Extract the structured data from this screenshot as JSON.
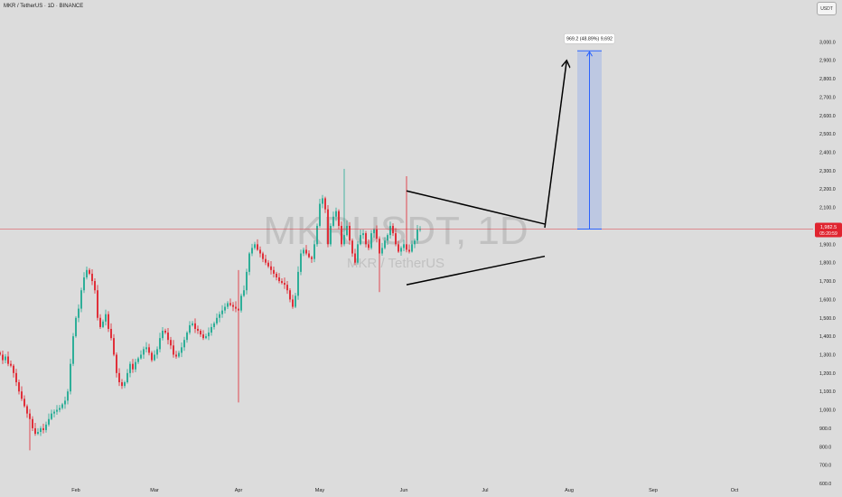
{
  "header": {
    "symbol_text": "MKR / TetherUS · 1D · BINANCE",
    "unit": "USDT"
  },
  "watermark": {
    "big": "MKRUSDT, 1D",
    "small": "MKR / TetherUS"
  },
  "price_badge": {
    "price": "1,982.5",
    "countdown": "05:20:59",
    "color": "#e0242f"
  },
  "measure": {
    "label": "969.2 (48.89%) 9,692",
    "from_price": 1982.5,
    "to_price": 2951.7
  },
  "chart_data": {
    "type": "candlestick",
    "symbol": "MKRUSDT",
    "interval": "1D",
    "exchange": "BINANCE",
    "ylim": [
      600,
      3100
    ],
    "y_ticks": [
      600,
      700,
      800,
      900,
      1000,
      1100,
      1200,
      1300,
      1400,
      1500,
      1600,
      1700,
      1800,
      1900,
      2000,
      2100,
      2200,
      2300,
      2400,
      2500,
      2600,
      2700,
      2800,
      2900,
      3000
    ],
    "y_tick_labels": [
      "600.0",
      "700.0",
      "800.0",
      "900.0",
      "1,000.0",
      "1,100.0",
      "1,200.0",
      "1,300.0",
      "1,400.0",
      "1,500.0",
      "1,600.0",
      "1,700.0",
      "1,800.0",
      "1,900.0",
      "2,000.0",
      "2,100.0",
      "2,200.0",
      "2,300.0",
      "2,400.0",
      "2,500.0",
      "2,600.0",
      "2,700.0",
      "2,800.0",
      "2,900.0",
      "3,000.0"
    ],
    "x_labels": [
      {
        "label": "Feb",
        "date": "2024-02-01"
      },
      {
        "label": "Mar",
        "date": "2024-03-01"
      },
      {
        "label": "Apr",
        "date": "2024-04-01"
      },
      {
        "label": "May",
        "date": "2024-05-01"
      },
      {
        "label": "Jun",
        "date": "2024-06-01"
      },
      {
        "label": "Jul",
        "date": "2024-07-01"
      },
      {
        "label": "Aug",
        "date": "2024-08-01"
      },
      {
        "label": "Sep",
        "date": "2024-09-01"
      },
      {
        "label": "Oct",
        "date": "2024-10-01"
      }
    ],
    "x_range": [
      "2024-01-04",
      "2024-10-30"
    ],
    "last_price": 1982.5,
    "colors": {
      "up": "#22ab94",
      "down": "#e0242f",
      "background": "#dcdcdc"
    },
    "candles_start_date": "2024-01-04",
    "closes": [
      1300,
      1270,
      1290,
      1250,
      1240,
      1200,
      1150,
      1100,
      1060,
      1020,
      980,
      950,
      900,
      870,
      880,
      900,
      890,
      920,
      950,
      980,
      990,
      1000,
      1010,
      1030,
      1050,
      1100,
      1250,
      1400,
      1500,
      1550,
      1650,
      1720,
      1760,
      1740,
      1700,
      1650,
      1500,
      1450,
      1480,
      1520,
      1440,
      1390,
      1300,
      1200,
      1150,
      1130,
      1150,
      1200,
      1250,
      1220,
      1260,
      1280,
      1300,
      1330,
      1340,
      1310,
      1270,
      1300,
      1330,
      1390,
      1430,
      1420,
      1380,
      1350,
      1300,
      1290,
      1310,
      1340,
      1380,
      1420,
      1460,
      1470,
      1440,
      1430,
      1410,
      1390,
      1400,
      1420,
      1450,
      1470,
      1500,
      1520,
      1540,
      1560,
      1580,
      1570,
      1560,
      1550,
      1540,
      1620,
      1650,
      1750,
      1850,
      1880,
      1900,
      1870,
      1850,
      1820,
      1800,
      1780,
      1760,
      1740,
      1720,
      1700,
      1690,
      1680,
      1650,
      1600,
      1560,
      1620,
      1750,
      1850,
      1870,
      1850,
      1830,
      1820,
      1900,
      2000,
      2120,
      2150,
      2090,
      1900,
      2000,
      2050,
      2080,
      2000,
      1900,
      1950,
      2000,
      1920,
      1850,
      1800,
      1900,
      1950,
      1960,
      1900,
      1880,
      1960,
      1980,
      1930,
      1850,
      1880,
      1920,
      1950,
      2000,
      1960,
      1900,
      1860,
      1880,
      1900,
      1870,
      1860,
      1900,
      1920,
      1980,
      1982.5
    ],
    "patterns": {
      "triangle_upper": {
        "from": {
          "date": "2024-06-02",
          "price": 2190
        },
        "to": {
          "date": "2024-07-23",
          "price": 2010
        }
      },
      "triangle_lower": {
        "from": {
          "date": "2024-06-02",
          "price": 1680
        },
        "to": {
          "date": "2024-07-23",
          "price": 1835
        }
      },
      "projection_arrow": {
        "from": {
          "date": "2024-07-23",
          "price": 1990
        },
        "to": {
          "date": "2024-07-31",
          "price": 2890
        }
      }
    }
  }
}
